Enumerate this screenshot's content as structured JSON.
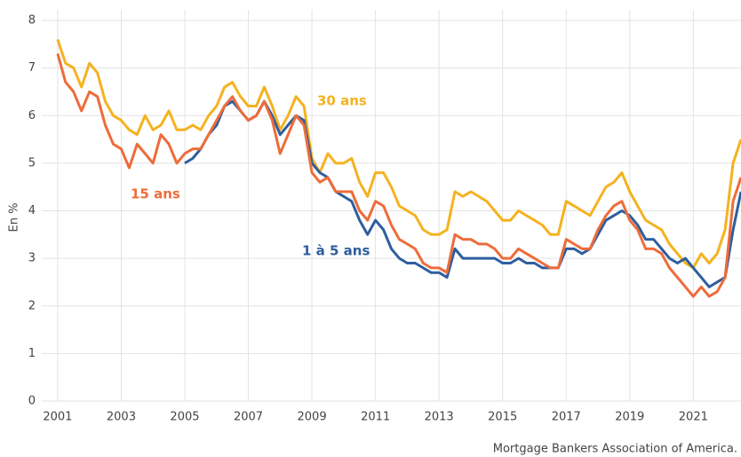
{
  "chart_data": {
    "type": "line",
    "y_label": "En %",
    "source": "Mortgage Bankers Association of America.",
    "xlim": [
      2000.5,
      2022.5
    ],
    "ylim": [
      0,
      8
    ],
    "xticks": [
      2001,
      2003,
      2005,
      2007,
      2009,
      2011,
      2013,
      2015,
      2017,
      2019,
      2021
    ],
    "yticks": [
      0,
      1,
      2,
      3,
      4,
      5,
      6,
      7,
      8
    ],
    "grid": true,
    "x": [
      2001,
      2001.25,
      2001.5,
      2001.75,
      2002,
      2002.25,
      2002.5,
      2002.75,
      2003,
      2003.25,
      2003.5,
      2003.75,
      2004,
      2004.25,
      2004.5,
      2004.75,
      2005,
      2005.25,
      2005.5,
      2005.75,
      2006,
      2006.25,
      2006.5,
      2006.75,
      2007,
      2007.25,
      2007.5,
      2007.75,
      2008,
      2008.25,
      2008.5,
      2008.75,
      2009,
      2009.25,
      2009.5,
      2009.75,
      2010,
      2010.25,
      2010.5,
      2010.75,
      2011,
      2011.25,
      2011.5,
      2011.75,
      2012,
      2012.25,
      2012.5,
      2012.75,
      2013,
      2013.25,
      2013.5,
      2013.75,
      2014,
      2014.25,
      2014.5,
      2014.75,
      2015,
      2015.25,
      2015.5,
      2015.75,
      2016,
      2016.25,
      2016.5,
      2016.75,
      2017,
      2017.25,
      2017.5,
      2017.75,
      2018,
      2018.25,
      2018.5,
      2018.75,
      2019,
      2019.25,
      2019.5,
      2019.75,
      2020,
      2020.25,
      2020.5,
      2020.75,
      2021,
      2021.25,
      2021.5,
      2021.75,
      2022,
      2022.25,
      2022.5
    ],
    "series": [
      {
        "name": "30 ans",
        "color": "#f5b21f",
        "values": [
          7.6,
          7.1,
          7.0,
          6.6,
          7.1,
          6.9,
          6.3,
          6.0,
          5.9,
          5.7,
          5.6,
          6.0,
          5.7,
          5.8,
          6.1,
          5.7,
          5.7,
          5.8,
          5.7,
          6.0,
          6.2,
          6.6,
          6.7,
          6.4,
          6.2,
          6.2,
          6.6,
          6.2,
          5.7,
          6.0,
          6.4,
          6.2,
          5.1,
          4.8,
          5.2,
          5.0,
          5.0,
          5.1,
          4.6,
          4.3,
          4.8,
          4.8,
          4.5,
          4.1,
          4.0,
          3.9,
          3.6,
          3.5,
          3.5,
          3.6,
          4.4,
          4.3,
          4.4,
          4.3,
          4.2,
          4.0,
          3.8,
          3.8,
          4.0,
          3.9,
          3.8,
          3.7,
          3.5,
          3.5,
          4.2,
          4.1,
          4.0,
          3.9,
          4.2,
          4.5,
          4.6,
          4.8,
          4.4,
          4.1,
          3.8,
          3.7,
          3.6,
          3.3,
          3.1,
          2.9,
          2.8,
          3.1,
          2.9,
          3.1,
          3.6,
          5.0,
          5.5
        ]
      },
      {
        "name": "1 à 5 ans",
        "color": "#2e5e9e",
        "values": [
          null,
          null,
          null,
          null,
          null,
          null,
          null,
          null,
          null,
          null,
          null,
          null,
          null,
          null,
          null,
          null,
          5.0,
          5.1,
          5.3,
          5.6,
          5.8,
          6.2,
          6.3,
          6.1,
          5.9,
          6.0,
          6.3,
          6.0,
          5.6,
          5.8,
          6.0,
          5.9,
          5.0,
          4.8,
          4.7,
          4.4,
          4.3,
          4.2,
          3.8,
          3.5,
          3.8,
          3.6,
          3.2,
          3.0,
          2.9,
          2.9,
          2.8,
          2.7,
          2.7,
          2.6,
          3.2,
          3.0,
          3.0,
          3.0,
          3.0,
          3.0,
          2.9,
          2.9,
          3.0,
          2.9,
          2.9,
          2.8,
          2.8,
          2.8,
          3.2,
          3.2,
          3.1,
          3.2,
          3.5,
          3.8,
          3.9,
          4.0,
          3.9,
          3.7,
          3.4,
          3.4,
          3.2,
          3.0,
          2.9,
          3.0,
          2.8,
          2.6,
          2.4,
          2.5,
          2.6,
          3.6,
          4.4
        ]
      },
      {
        "name": "15 ans",
        "color": "#ee6c3a",
        "values": [
          7.3,
          6.7,
          6.5,
          6.1,
          6.5,
          6.4,
          5.8,
          5.4,
          5.3,
          4.9,
          5.4,
          5.2,
          5.0,
          5.6,
          5.4,
          5.0,
          5.2,
          5.3,
          5.3,
          5.6,
          5.9,
          6.2,
          6.4,
          6.1,
          5.9,
          6.0,
          6.3,
          5.9,
          5.2,
          5.6,
          6.0,
          5.8,
          4.8,
          4.6,
          4.7,
          4.4,
          4.4,
          4.4,
          4.0,
          3.8,
          4.2,
          4.1,
          3.7,
          3.4,
          3.3,
          3.2,
          2.9,
          2.8,
          2.8,
          2.7,
          3.5,
          3.4,
          3.4,
          3.3,
          3.3,
          3.2,
          3.0,
          3.0,
          3.2,
          3.1,
          3.0,
          2.9,
          2.8,
          2.8,
          3.4,
          3.3,
          3.2,
          3.2,
          3.6,
          3.9,
          4.1,
          4.2,
          3.8,
          3.6,
          3.2,
          3.2,
          3.1,
          2.8,
          2.6,
          2.4,
          2.2,
          2.4,
          2.2,
          2.3,
          2.6,
          4.2,
          4.7
        ]
      }
    ]
  }
}
